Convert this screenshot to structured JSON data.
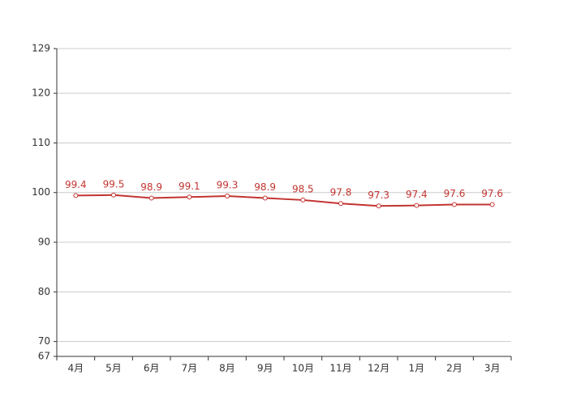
{
  "chart_data": {
    "type": "line",
    "categories": [
      "4月",
      "5月",
      "6月",
      "7月",
      "8月",
      "9月",
      "10月",
      "11月",
      "12月",
      "1月",
      "2月",
      "3月"
    ],
    "values": [
      99.4,
      99.5,
      98.9,
      99.1,
      99.3,
      98.9,
      98.5,
      97.8,
      97.3,
      97.4,
      97.6,
      97.6
    ],
    "color": "#c23531",
    "ylim": [
      67,
      129
    ],
    "yticks": [
      67,
      70,
      80,
      90,
      100,
      110,
      120,
      129
    ],
    "grid": true
  }
}
